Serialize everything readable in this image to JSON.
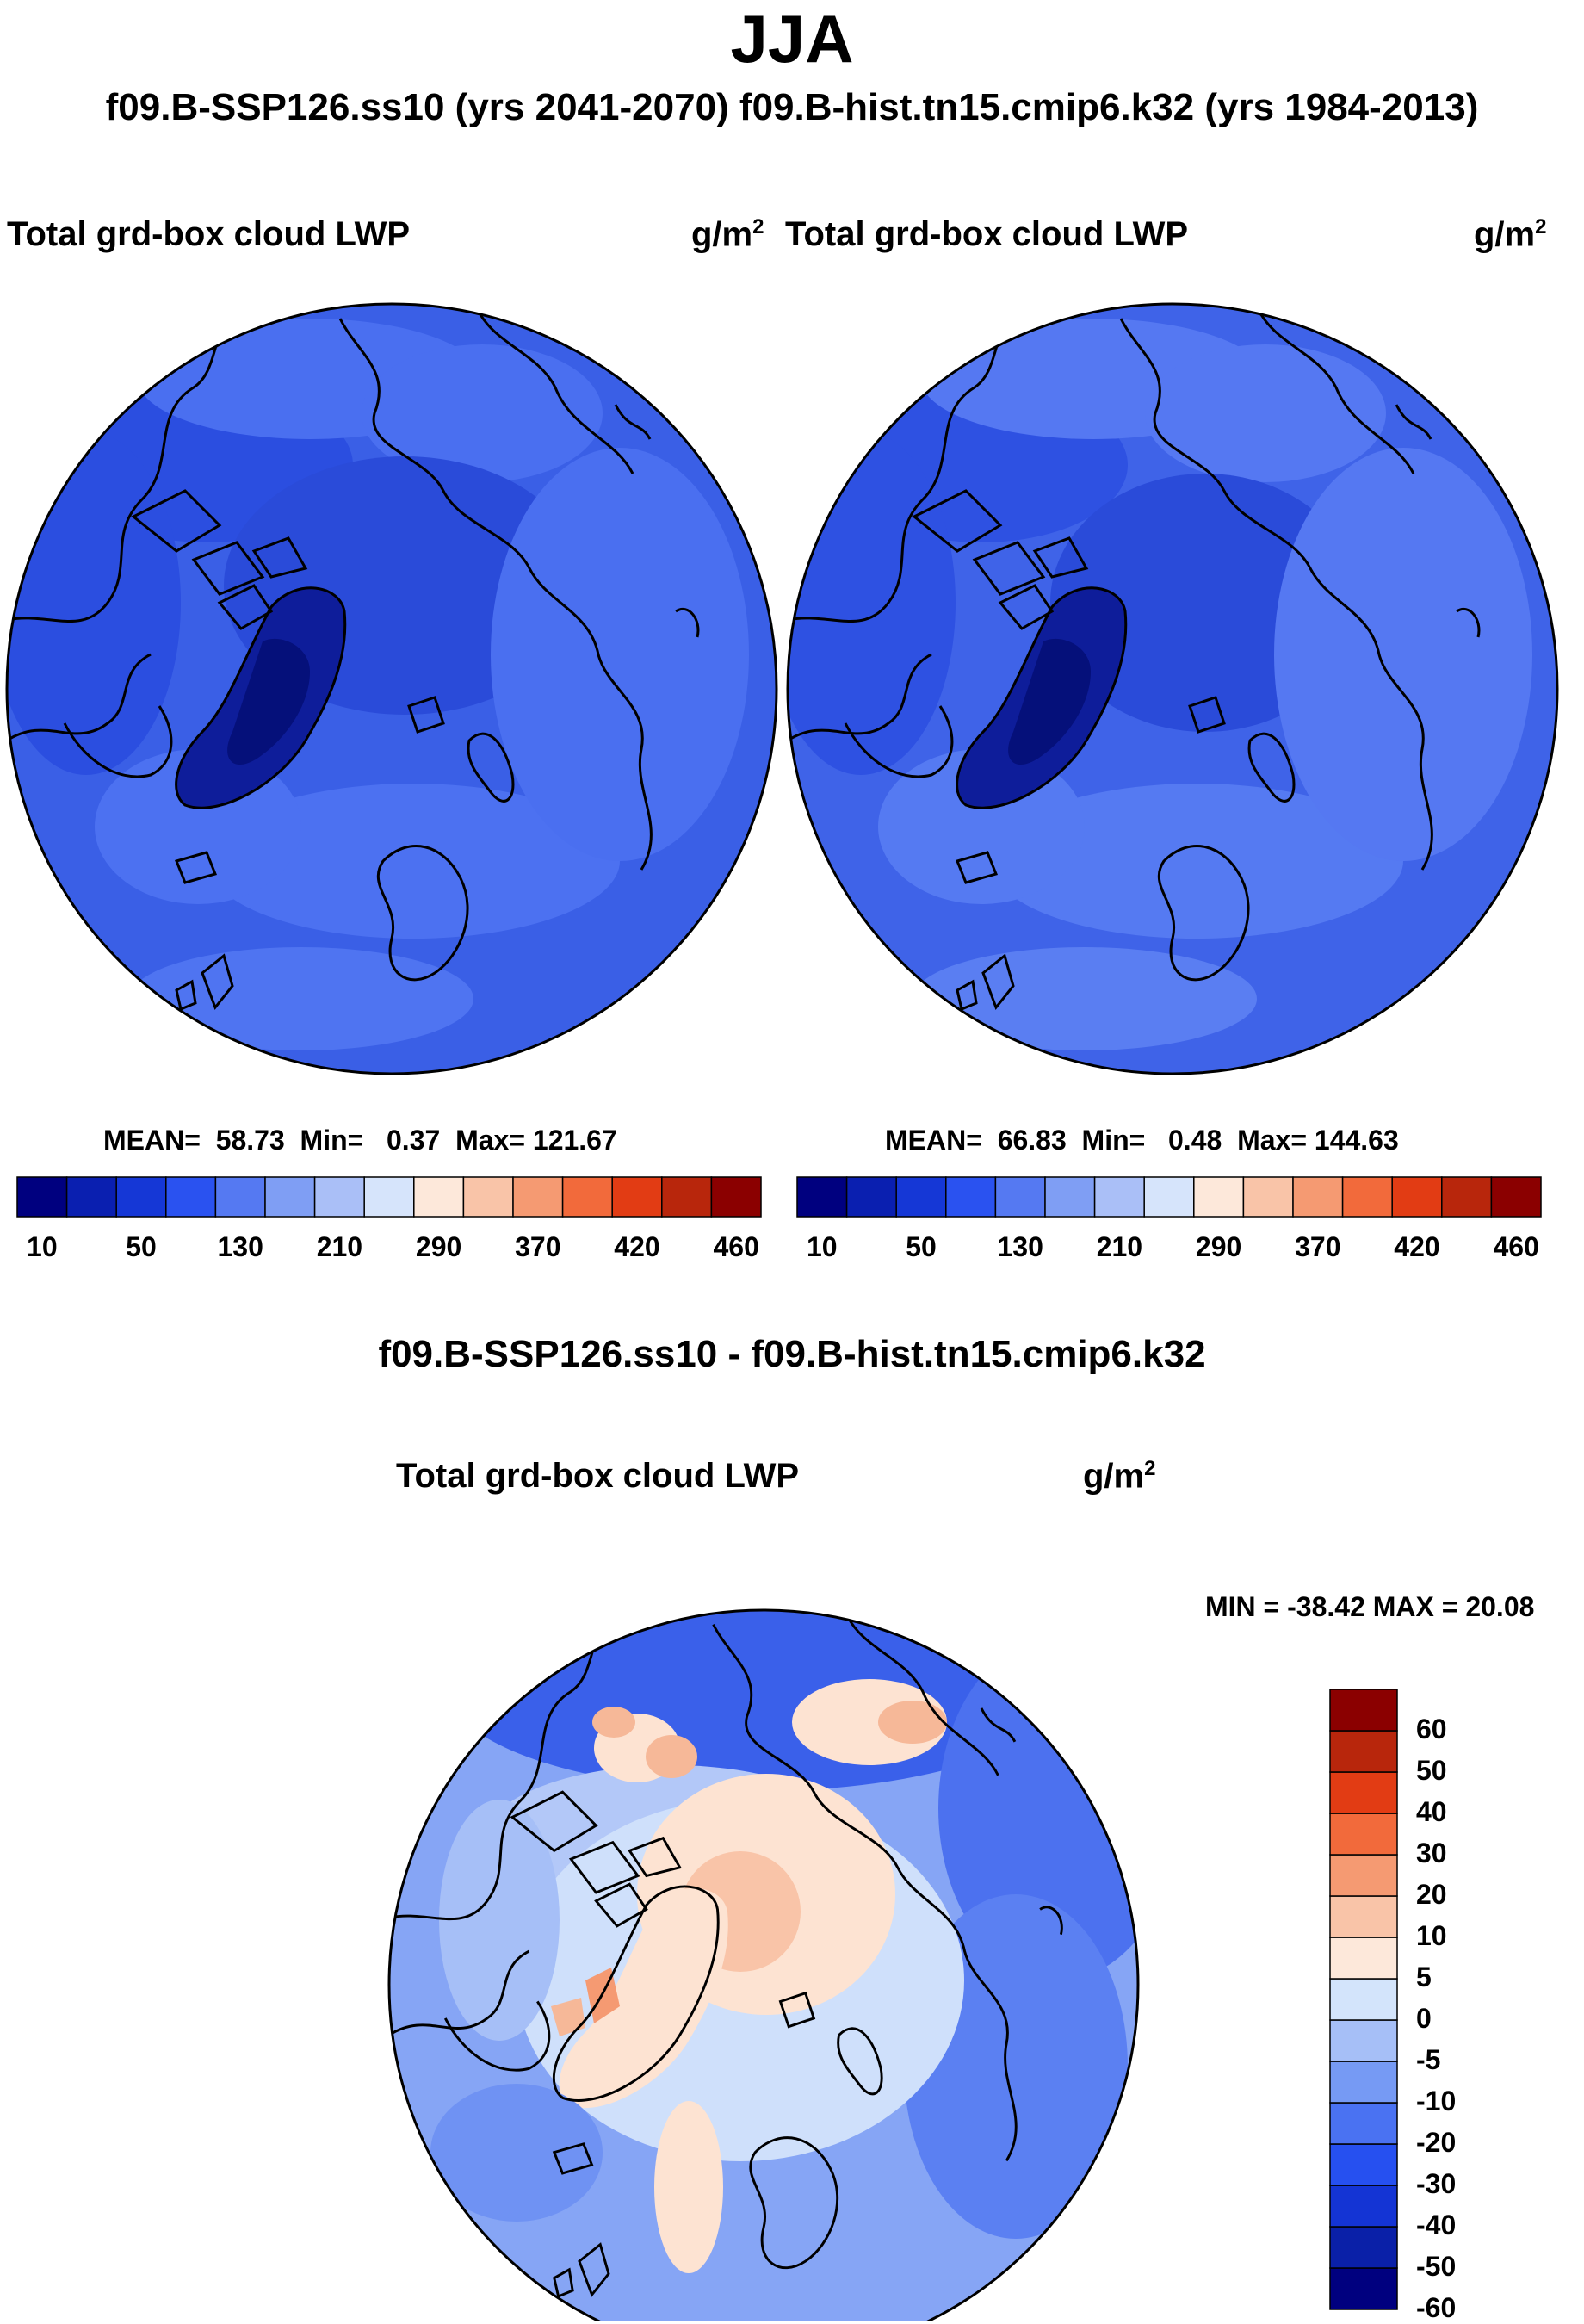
{
  "title": "JJA",
  "subtitle": "f09.B-SSP126.ss10 (yrs 2041-2070)  f09.B-hist.tn15.cmip6.k32 (yrs 1984-2013)",
  "colors": {
    "ocean_blue": "#3259e3",
    "coastline": "#000000"
  },
  "panels": [
    {
      "variable": "Total grd-box cloud LWP",
      "units_base": "g/m",
      "units_exp": "2",
      "mean_label": "MEAN=",
      "mean_value": "58.73",
      "min_label": "Min=",
      "min_value": "0.37",
      "max_label": "Max=",
      "max_value": "121.67"
    },
    {
      "variable": "Total grd-box cloud LWP",
      "units_base": "g/m",
      "units_exp": "2",
      "mean_label": "MEAN=",
      "mean_value": "66.83",
      "min_label": "Min=",
      "min_value": "0.48",
      "max_label": "Max=",
      "max_value": "144.63"
    }
  ],
  "field_colorbar": {
    "colors": [
      "#00007f",
      "#0a1fb0",
      "#1537d6",
      "#2a52f0",
      "#5579f2",
      "#7f9ef4",
      "#aabff7",
      "#d6e4fb",
      "#fde8da",
      "#f9c4a8",
      "#f59a72",
      "#f26a3b",
      "#e23c14",
      "#b8260c",
      "#8b0000"
    ],
    "ticks": [
      "10",
      "50",
      "130",
      "210",
      "290",
      "370",
      "420",
      "460"
    ]
  },
  "diff": {
    "title": "f09.B-SSP126.ss10 - f09.B-hist.tn15.cmip6.k32",
    "variable": "Total grd-box cloud LWP",
    "units_base": "g/m",
    "units_exp": "2",
    "minmax": "MIN = -38.42 MAX =  20.08",
    "colorbar_colors_bottom_up": [
      "#00007f",
      "#0a20a8",
      "#1434d4",
      "#2650f0",
      "#4a72f2",
      "#769af4",
      "#a6bff7",
      "#d3e4fb",
      "#fde8da",
      "#f9c4a8",
      "#f59a72",
      "#f26a3b",
      "#e23c14",
      "#b8260c",
      "#8b0000"
    ],
    "colorbar_ticks_top_down": [
      "60",
      "50",
      "40",
      "30",
      "20",
      "10",
      "5",
      "0",
      "-5",
      "-10",
      "-20",
      "-30",
      "-40",
      "-50",
      "-60"
    ]
  }
}
